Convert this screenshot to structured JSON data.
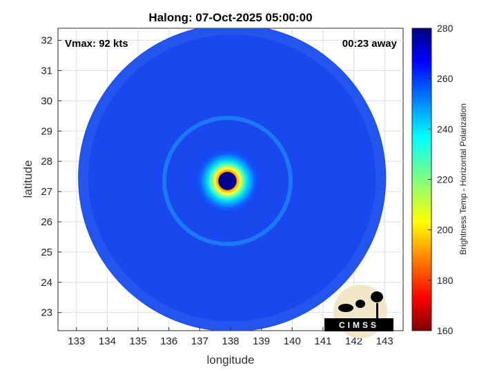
{
  "chart_data": {
    "type": "heatmap",
    "title": "Halong: 07-Oct-2025 05:00:00",
    "xlabel": "longitude",
    "ylabel": "latitude",
    "xlim": [
      132.4,
      143.6
    ],
    "ylim": [
      22.4,
      32.4
    ],
    "xticks": [
      133,
      134,
      135,
      136,
      137,
      138,
      139,
      140,
      141,
      142,
      143
    ],
    "yticks": [
      23,
      24,
      25,
      26,
      27,
      28,
      29,
      30,
      31,
      32
    ],
    "grid": true,
    "center": {
      "lon": 137.9,
      "lat": 27.35
    },
    "swath_radius_deg": 5.1,
    "annotations": {
      "left": "Vmax: 92 kts",
      "right": "00:23 away"
    },
    "colorbar": {
      "label": "Brightness Temp - Horizontal Polarization",
      "range": [
        160,
        280
      ],
      "ticks": [
        160,
        180,
        200,
        220,
        240,
        260,
        280
      ],
      "colormap": "jet"
    }
  },
  "logo": {
    "text": "CIMSS"
  }
}
